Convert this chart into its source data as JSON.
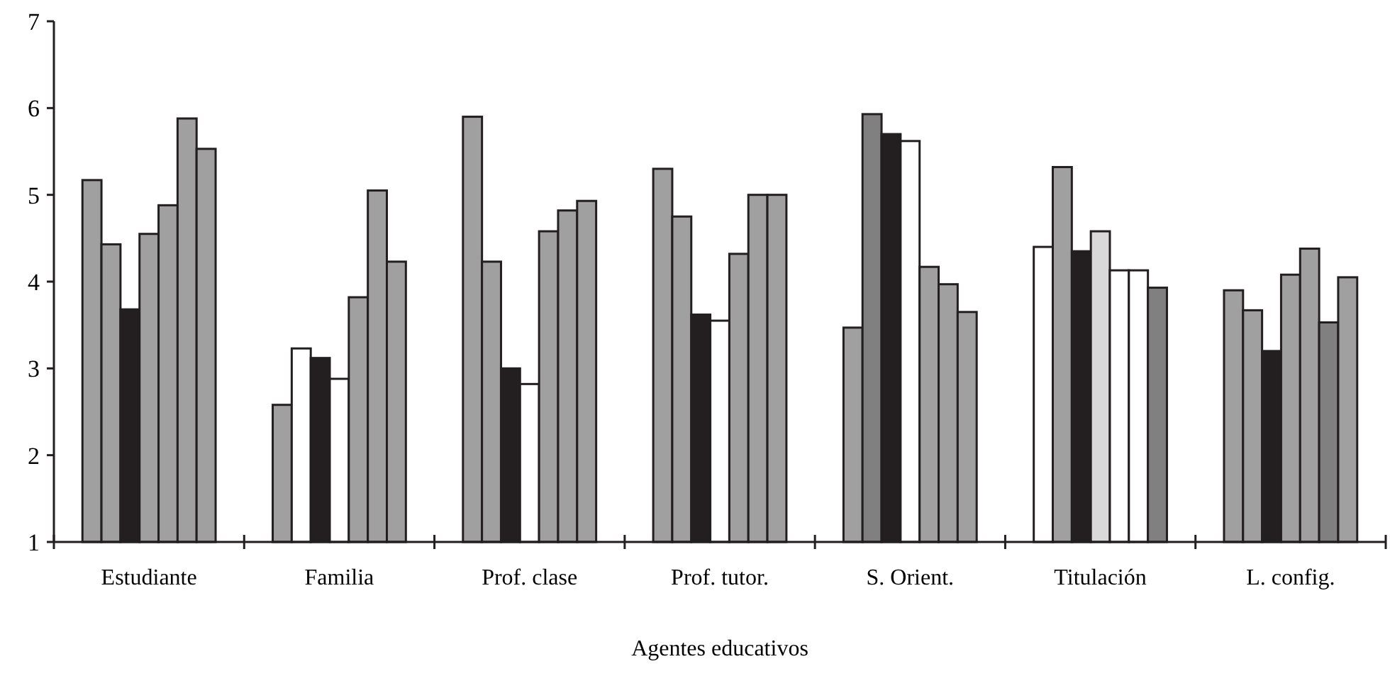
{
  "chart_data": {
    "type": "bar",
    "xlabel": "Agentes educativos",
    "categories": [
      "Estudiante",
      "Familia",
      "Prof. clase",
      "Prof. tutor.",
      "S. Orient.",
      "Titulación",
      "L. config."
    ],
    "series": [
      {
        "values": [
          5.17,
          2.58,
          5.9,
          5.3,
          3.47,
          4.4,
          3.9
        ],
        "colors": [
          "#a0a0a0",
          "#a0a0a0",
          "#a0a0a0",
          "#a0a0a0",
          "#a0a0a0",
          "#ffffff",
          "#a0a0a0"
        ]
      },
      {
        "values": [
          4.43,
          3.23,
          4.23,
          4.75,
          5.93,
          5.32,
          3.67
        ],
        "colors": [
          "#a0a0a0",
          "#ffffff",
          "#a0a0a0",
          "#a0a0a0",
          "#808080",
          "#a0a0a0",
          "#a0a0a0"
        ]
      },
      {
        "values": [
          3.68,
          3.12,
          3.0,
          3.62,
          5.7,
          4.35,
          3.2
        ],
        "colors": [
          "#231f20",
          "#231f20",
          "#231f20",
          "#231f20",
          "#231f20",
          "#231f20",
          "#231f20"
        ]
      },
      {
        "values": [
          4.55,
          2.88,
          2.82,
          3.55,
          5.62,
          4.58,
          4.08
        ],
        "colors": [
          "#a0a0a0",
          "#ffffff",
          "#ffffff",
          "#ffffff",
          "#ffffff",
          "#d9d9d9",
          "#a0a0a0"
        ]
      },
      {
        "values": [
          4.88,
          3.82,
          4.58,
          4.32,
          4.17,
          4.13,
          4.38
        ],
        "colors": [
          "#a0a0a0",
          "#a0a0a0",
          "#a0a0a0",
          "#a0a0a0",
          "#a0a0a0",
          "#ffffff",
          "#a0a0a0"
        ]
      },
      {
        "values": [
          5.88,
          5.05,
          4.82,
          5.0,
          3.97,
          4.13,
          3.53
        ],
        "colors": [
          "#a0a0a0",
          "#a0a0a0",
          "#a0a0a0",
          "#a0a0a0",
          "#a0a0a0",
          "#ffffff",
          "#808080"
        ]
      },
      {
        "values": [
          5.53,
          4.23,
          4.93,
          5.0,
          3.65,
          3.93,
          4.05
        ],
        "colors": [
          "#a0a0a0",
          "#a0a0a0",
          "#a0a0a0",
          "#a0a0a0",
          "#a0a0a0",
          "#808080",
          "#a0a0a0"
        ]
      }
    ],
    "ylim": [
      1,
      7
    ],
    "yticks": [
      1,
      2,
      3,
      4,
      5,
      6,
      7
    ],
    "grid": false
  }
}
